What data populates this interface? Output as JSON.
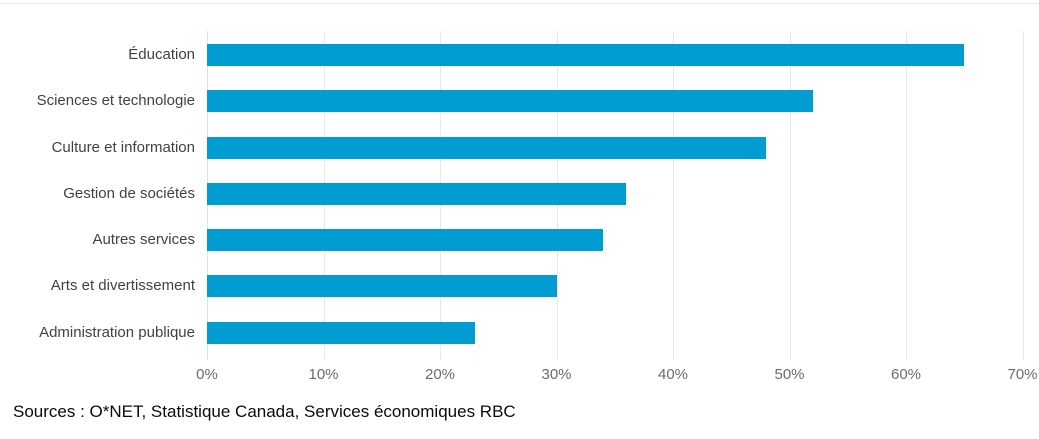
{
  "chart_data": {
    "type": "bar",
    "orientation": "horizontal",
    "title": "",
    "xlabel": "",
    "ylabel": "",
    "categories": [
      "Éducation",
      "Sciences et technologie",
      "Culture et information",
      "Gestion de sociétés",
      "Autres services",
      "Arts et divertissement",
      "Administration publique"
    ],
    "values": [
      65,
      52,
      48,
      36,
      34,
      30,
      23
    ],
    "value_unit": "%",
    "xlim": [
      0,
      70
    ],
    "x_tick_values": [
      0,
      10,
      20,
      30,
      40,
      50,
      60,
      70
    ],
    "x_tick_labels": [
      "0%",
      "10%",
      "20%",
      "30%",
      "40%",
      "50%",
      "60%",
      "70%"
    ],
    "grid": "vertical-only",
    "legend": "none",
    "colors": {
      "bar": "#009cd2",
      "gridline": "#e9e9e9",
      "zero_axis_line": "#dce2ee",
      "category_label": "#3f4245",
      "tick_label": "#6b6c70",
      "source_text": "#0b0b0b",
      "top_rule": "#e8e8e8"
    }
  },
  "source_note": "Sources : O*NET, Statistique Canada, Services économiques RBC"
}
